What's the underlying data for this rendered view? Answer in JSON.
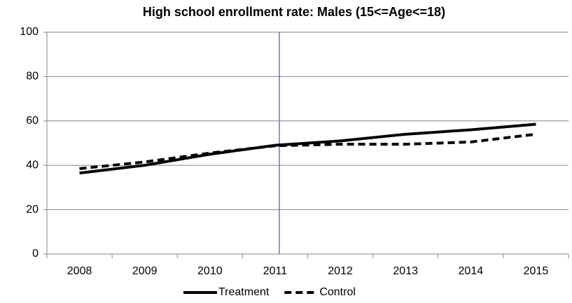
{
  "chart_data": {
    "type": "line",
    "title": "High school enrollment rate: Males (15<=Age<=18)",
    "categories": [
      "2008",
      "2009",
      "2010",
      "2011",
      "2012",
      "2013",
      "2014",
      "2015"
    ],
    "series": [
      {
        "name": "Treatment",
        "color": "#000000",
        "dash": false,
        "values": [
          36.5,
          40,
          45,
          49,
          51,
          54,
          56,
          58.5
        ]
      },
      {
        "name": "Control",
        "color": "#000000",
        "dash": true,
        "values": [
          38.5,
          41.5,
          45.5,
          48.8,
          49.5,
          49.5,
          50.5,
          54
        ]
      }
    ],
    "ylim": [
      0,
      100
    ],
    "yticks": [
      0,
      20,
      40,
      60,
      80,
      100
    ],
    "grid": true,
    "legend": "bottom",
    "vertical_line": {
      "at": "2011",
      "color": "#4f81bd"
    }
  }
}
